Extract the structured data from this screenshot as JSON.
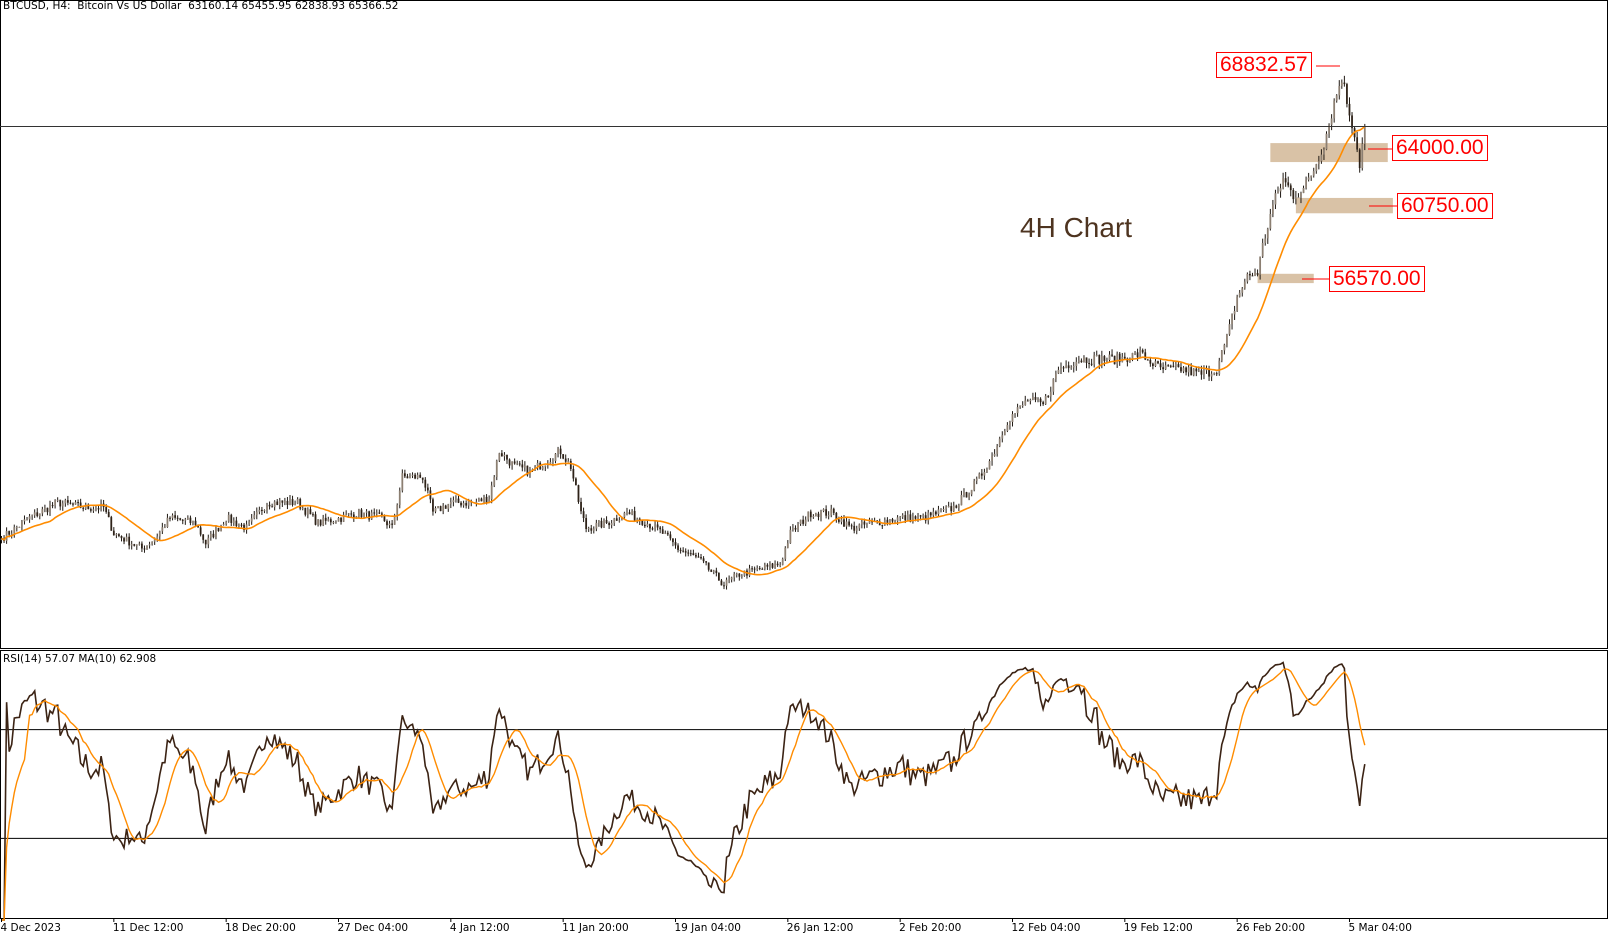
{
  "header": {
    "symbol": "BTCUSD, H4:",
    "description": "Bitcoin Vs US Dollar",
    "ohlc": "63160.14 65455.95 62838.93 65366.52"
  },
  "rsi_header": "RSI(14) 57.07 MA(10) 62.908",
  "annotation_title": "4H Chart",
  "level_labels": {
    "high": "68832.57",
    "l1": "64000.00",
    "l2": "60750.00",
    "l3": "56570.00"
  },
  "colors": {
    "ma": "#ff8c00",
    "rsi": "#3b2314",
    "zone": "#d9c2a6",
    "label": "#ff0000",
    "bull": "#8c7f72",
    "bear": "#2e2218"
  },
  "chart_data": {
    "type": "candlestick",
    "symbol": "BTCUSD",
    "timeframe": "H4",
    "x_tick_labels": [
      "4 Dec 2023",
      "11 Dec 12:00",
      "18 Dec 20:00",
      "27 Dec 04:00",
      "4 Jan 12:00",
      "11 Jan 20:00",
      "19 Jan 04:00",
      "26 Jan 12:00",
      "2 Feb 20:00",
      "12 Feb 04:00",
      "19 Feb 12:00",
      "26 Feb 20:00",
      "5 Mar 04:00"
    ],
    "bars_per_tick": 44,
    "approx_close_path": [
      [
        0,
        41470
      ],
      [
        11,
        42660
      ],
      [
        22,
        43550
      ],
      [
        33,
        43260
      ],
      [
        40,
        43260
      ],
      [
        44,
        41770
      ],
      [
        55,
        40880
      ],
      [
        60,
        41470
      ],
      [
        66,
        42660
      ],
      [
        76,
        42360
      ],
      [
        80,
        41180
      ],
      [
        88,
        42660
      ],
      [
        96,
        42070
      ],
      [
        104,
        43550
      ],
      [
        116,
        43550
      ],
      [
        124,
        42360
      ],
      [
        133,
        42660
      ],
      [
        139,
        42960
      ],
      [
        149,
        42660
      ],
      [
        153,
        42070
      ],
      [
        157,
        45040
      ],
      [
        165,
        45040
      ],
      [
        169,
        42960
      ],
      [
        176,
        43550
      ],
      [
        185,
        43550
      ],
      [
        191,
        43850
      ],
      [
        195,
        46530
      ],
      [
        201,
        45640
      ],
      [
        207,
        45340
      ],
      [
        213,
        45930
      ],
      [
        219,
        46530
      ],
      [
        223,
        45640
      ],
      [
        227,
        42960
      ],
      [
        229,
        42070
      ],
      [
        237,
        42360
      ],
      [
        245,
        42960
      ],
      [
        253,
        42360
      ],
      [
        259,
        41770
      ],
      [
        265,
        40880
      ],
      [
        273,
        40280
      ],
      [
        279,
        39390
      ],
      [
        283,
        38800
      ],
      [
        289,
        39390
      ],
      [
        297,
        39690
      ],
      [
        305,
        39990
      ],
      [
        309,
        41770
      ],
      [
        317,
        42960
      ],
      [
        325,
        42960
      ],
      [
        333,
        42070
      ],
      [
        341,
        42360
      ],
      [
        352,
        42660
      ],
      [
        361,
        42660
      ],
      [
        373,
        43260
      ],
      [
        382,
        44740
      ],
      [
        388,
        46230
      ],
      [
        394,
        48310
      ],
      [
        402,
        49500
      ],
      [
        408,
        49200
      ],
      [
        414,
        51290
      ],
      [
        422,
        51880
      ],
      [
        430,
        51880
      ],
      [
        438,
        51880
      ],
      [
        446,
        52180
      ],
      [
        454,
        51290
      ],
      [
        462,
        51290
      ],
      [
        470,
        50990
      ],
      [
        476,
        51290
      ],
      [
        480,
        53070
      ],
      [
        484,
        55450
      ],
      [
        488,
        56640
      ],
      [
        492,
        56940
      ],
      [
        494,
        58420
      ],
      [
        498,
        60800
      ],
      [
        502,
        62290
      ],
      [
        506,
        61400
      ],
      [
        510,
        61700
      ],
      [
        514,
        62890
      ],
      [
        518,
        64370
      ],
      [
        522,
        66750
      ],
      [
        525,
        68240
      ],
      [
        528,
        66160
      ],
      [
        530,
        64970
      ],
      [
        532,
        63180
      ],
      [
        534,
        65366
      ]
    ],
    "last_price": 65366.52,
    "high_marker": 68832.57,
    "zones": [
      {
        "label": "64000.00",
        "price_low": 63300,
        "price_high": 64400,
        "from_bar": 497,
        "to_bar": 543
      },
      {
        "label": "60750.00",
        "price_low": 60330,
        "price_high": 61220,
        "from_bar": 507,
        "to_bar": 545
      },
      {
        "label": "56570.00",
        "price_low": 56280,
        "price_high": 56820,
        "from_bar": 492,
        "to_bar": 514
      }
    ],
    "indicators": {
      "price_ma_period": 20,
      "rsi_period": 14,
      "rsi_ma_period": 10,
      "rsi_levels": [
        70,
        30
      ]
    }
  }
}
